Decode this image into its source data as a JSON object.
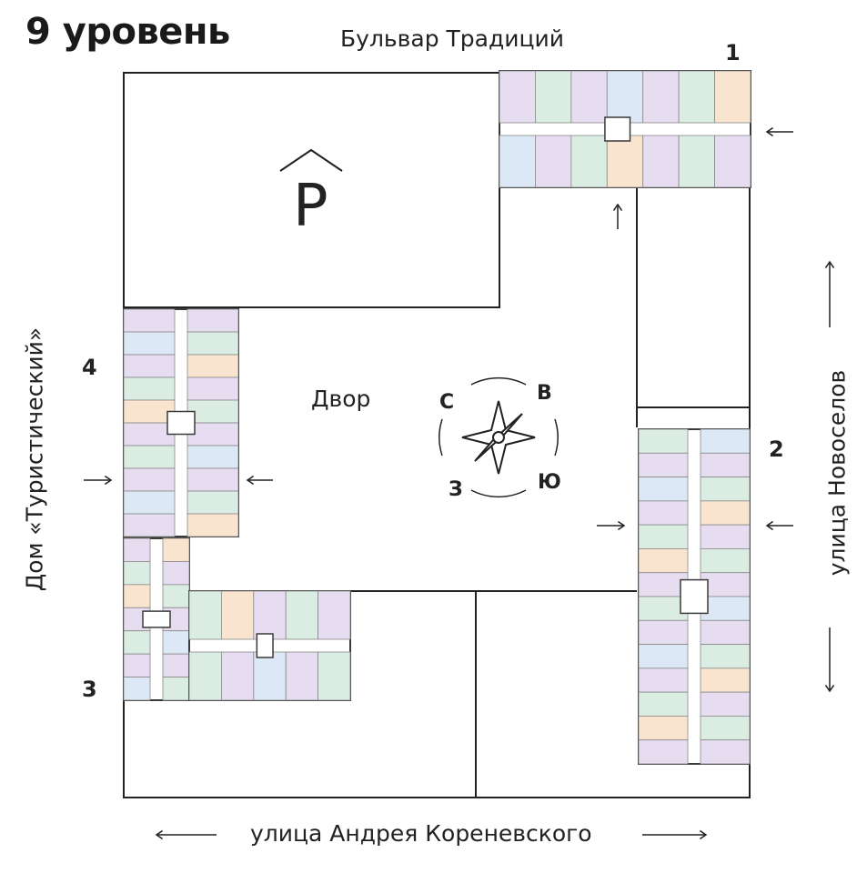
{
  "title": "9 уровень",
  "streets": {
    "top": "Бульвар Традиций",
    "right": "улица Новоселов",
    "bottom": "улица Андрея Кореневского",
    "left": "Дом «Туристический»"
  },
  "buildings": [
    {
      "number": "1"
    },
    {
      "number": "2"
    },
    {
      "number": "3"
    },
    {
      "number": "4"
    }
  ],
  "parking": {
    "label": "P",
    "icon": "parking-icon"
  },
  "yard": {
    "label": "Двор"
  },
  "compass": {
    "north": "С",
    "east": "В",
    "south": "Ю",
    "west": "З",
    "icon": "compass-rose-icon"
  },
  "colors": {
    "purple_unit": "#e7ddf0",
    "green_unit": "#dbece2",
    "blue_unit": "#dce8f6",
    "orange_unit": "#f9e4d0",
    "walls": "#3a3a3a",
    "lines": "#222222"
  }
}
